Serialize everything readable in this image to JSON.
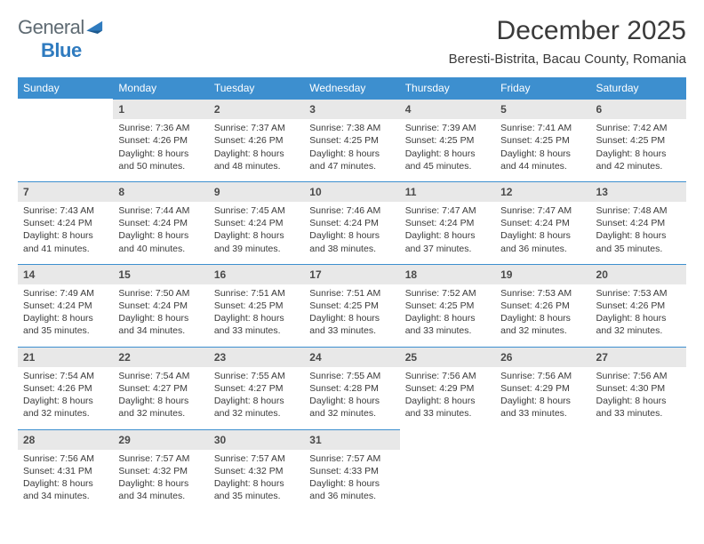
{
  "brand": {
    "word1": "General",
    "word2": "Blue"
  },
  "title": "December 2025",
  "location": "Beresti-Bistrita, Bacau County, Romania",
  "colors": {
    "header_bg": "#3d8fcf",
    "header_text": "#ffffff",
    "daynum_bg": "#e8e8e8",
    "daynum_border": "#3d8fcf",
    "body_text": "#3a3a3a",
    "page_bg": "#ffffff",
    "logo_gray": "#5f6b73",
    "logo_blue": "#2f7bbf"
  },
  "typography": {
    "month_fontsize": 30,
    "location_fontsize": 15,
    "header_fontsize": 12,
    "daynum_fontsize": 12,
    "cell_fontsize": 10.5
  },
  "day_headers": [
    "Sunday",
    "Monday",
    "Tuesday",
    "Wednesday",
    "Thursday",
    "Friday",
    "Saturday"
  ],
  "weeks": [
    [
      {
        "num": "",
        "sunrise": "",
        "sunset": "",
        "daylight": ""
      },
      {
        "num": "1",
        "sunrise": "Sunrise: 7:36 AM",
        "sunset": "Sunset: 4:26 PM",
        "daylight": "Daylight: 8 hours and 50 minutes."
      },
      {
        "num": "2",
        "sunrise": "Sunrise: 7:37 AM",
        "sunset": "Sunset: 4:26 PM",
        "daylight": "Daylight: 8 hours and 48 minutes."
      },
      {
        "num": "3",
        "sunrise": "Sunrise: 7:38 AM",
        "sunset": "Sunset: 4:25 PM",
        "daylight": "Daylight: 8 hours and 47 minutes."
      },
      {
        "num": "4",
        "sunrise": "Sunrise: 7:39 AM",
        "sunset": "Sunset: 4:25 PM",
        "daylight": "Daylight: 8 hours and 45 minutes."
      },
      {
        "num": "5",
        "sunrise": "Sunrise: 7:41 AM",
        "sunset": "Sunset: 4:25 PM",
        "daylight": "Daylight: 8 hours and 44 minutes."
      },
      {
        "num": "6",
        "sunrise": "Sunrise: 7:42 AM",
        "sunset": "Sunset: 4:25 PM",
        "daylight": "Daylight: 8 hours and 42 minutes."
      }
    ],
    [
      {
        "num": "7",
        "sunrise": "Sunrise: 7:43 AM",
        "sunset": "Sunset: 4:24 PM",
        "daylight": "Daylight: 8 hours and 41 minutes."
      },
      {
        "num": "8",
        "sunrise": "Sunrise: 7:44 AM",
        "sunset": "Sunset: 4:24 PM",
        "daylight": "Daylight: 8 hours and 40 minutes."
      },
      {
        "num": "9",
        "sunrise": "Sunrise: 7:45 AM",
        "sunset": "Sunset: 4:24 PM",
        "daylight": "Daylight: 8 hours and 39 minutes."
      },
      {
        "num": "10",
        "sunrise": "Sunrise: 7:46 AM",
        "sunset": "Sunset: 4:24 PM",
        "daylight": "Daylight: 8 hours and 38 minutes."
      },
      {
        "num": "11",
        "sunrise": "Sunrise: 7:47 AM",
        "sunset": "Sunset: 4:24 PM",
        "daylight": "Daylight: 8 hours and 37 minutes."
      },
      {
        "num": "12",
        "sunrise": "Sunrise: 7:47 AM",
        "sunset": "Sunset: 4:24 PM",
        "daylight": "Daylight: 8 hours and 36 minutes."
      },
      {
        "num": "13",
        "sunrise": "Sunrise: 7:48 AM",
        "sunset": "Sunset: 4:24 PM",
        "daylight": "Daylight: 8 hours and 35 minutes."
      }
    ],
    [
      {
        "num": "14",
        "sunrise": "Sunrise: 7:49 AM",
        "sunset": "Sunset: 4:24 PM",
        "daylight": "Daylight: 8 hours and 35 minutes."
      },
      {
        "num": "15",
        "sunrise": "Sunrise: 7:50 AM",
        "sunset": "Sunset: 4:24 PM",
        "daylight": "Daylight: 8 hours and 34 minutes."
      },
      {
        "num": "16",
        "sunrise": "Sunrise: 7:51 AM",
        "sunset": "Sunset: 4:25 PM",
        "daylight": "Daylight: 8 hours and 33 minutes."
      },
      {
        "num": "17",
        "sunrise": "Sunrise: 7:51 AM",
        "sunset": "Sunset: 4:25 PM",
        "daylight": "Daylight: 8 hours and 33 minutes."
      },
      {
        "num": "18",
        "sunrise": "Sunrise: 7:52 AM",
        "sunset": "Sunset: 4:25 PM",
        "daylight": "Daylight: 8 hours and 33 minutes."
      },
      {
        "num": "19",
        "sunrise": "Sunrise: 7:53 AM",
        "sunset": "Sunset: 4:26 PM",
        "daylight": "Daylight: 8 hours and 32 minutes."
      },
      {
        "num": "20",
        "sunrise": "Sunrise: 7:53 AM",
        "sunset": "Sunset: 4:26 PM",
        "daylight": "Daylight: 8 hours and 32 minutes."
      }
    ],
    [
      {
        "num": "21",
        "sunrise": "Sunrise: 7:54 AM",
        "sunset": "Sunset: 4:26 PM",
        "daylight": "Daylight: 8 hours and 32 minutes."
      },
      {
        "num": "22",
        "sunrise": "Sunrise: 7:54 AM",
        "sunset": "Sunset: 4:27 PM",
        "daylight": "Daylight: 8 hours and 32 minutes."
      },
      {
        "num": "23",
        "sunrise": "Sunrise: 7:55 AM",
        "sunset": "Sunset: 4:27 PM",
        "daylight": "Daylight: 8 hours and 32 minutes."
      },
      {
        "num": "24",
        "sunrise": "Sunrise: 7:55 AM",
        "sunset": "Sunset: 4:28 PM",
        "daylight": "Daylight: 8 hours and 32 minutes."
      },
      {
        "num": "25",
        "sunrise": "Sunrise: 7:56 AM",
        "sunset": "Sunset: 4:29 PM",
        "daylight": "Daylight: 8 hours and 33 minutes."
      },
      {
        "num": "26",
        "sunrise": "Sunrise: 7:56 AM",
        "sunset": "Sunset: 4:29 PM",
        "daylight": "Daylight: 8 hours and 33 minutes."
      },
      {
        "num": "27",
        "sunrise": "Sunrise: 7:56 AM",
        "sunset": "Sunset: 4:30 PM",
        "daylight": "Daylight: 8 hours and 33 minutes."
      }
    ],
    [
      {
        "num": "28",
        "sunrise": "Sunrise: 7:56 AM",
        "sunset": "Sunset: 4:31 PM",
        "daylight": "Daylight: 8 hours and 34 minutes."
      },
      {
        "num": "29",
        "sunrise": "Sunrise: 7:57 AM",
        "sunset": "Sunset: 4:32 PM",
        "daylight": "Daylight: 8 hours and 34 minutes."
      },
      {
        "num": "30",
        "sunrise": "Sunrise: 7:57 AM",
        "sunset": "Sunset: 4:32 PM",
        "daylight": "Daylight: 8 hours and 35 minutes."
      },
      {
        "num": "31",
        "sunrise": "Sunrise: 7:57 AM",
        "sunset": "Sunset: 4:33 PM",
        "daylight": "Daylight: 8 hours and 36 minutes."
      },
      {
        "num": "",
        "sunrise": "",
        "sunset": "",
        "daylight": ""
      },
      {
        "num": "",
        "sunrise": "",
        "sunset": "",
        "daylight": ""
      },
      {
        "num": "",
        "sunrise": "",
        "sunset": "",
        "daylight": ""
      }
    ]
  ]
}
